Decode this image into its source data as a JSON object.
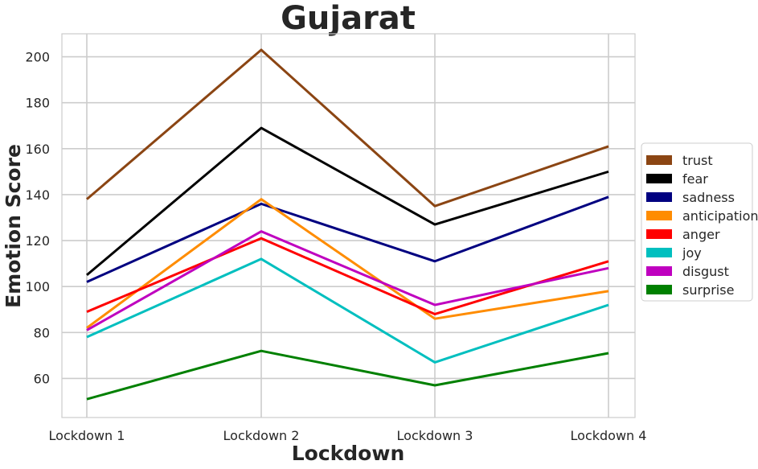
{
  "chart_data": {
    "type": "line",
    "title": "Gujarat",
    "xlabel": "Lockdown",
    "ylabel": "Emotion Score",
    "categories": [
      "Lockdown 1",
      "Lockdown 2",
      "Lockdown 3",
      "Lockdown 4"
    ],
    "ylim": [
      43,
      210
    ],
    "yticks": [
      60,
      80,
      100,
      120,
      140,
      160,
      180,
      200
    ],
    "grid": true,
    "legend_position": "right",
    "series": [
      {
        "name": "trust",
        "color": "#8B4513",
        "values": [
          138,
          203,
          135,
          161
        ]
      },
      {
        "name": "fear",
        "color": "#000000",
        "values": [
          105,
          169,
          127,
          150
        ]
      },
      {
        "name": "sadness",
        "color": "#000080",
        "values": [
          102,
          136,
          111,
          139
        ]
      },
      {
        "name": "anticipation",
        "color": "#FF8C00",
        "values": [
          82,
          138,
          86,
          98
        ]
      },
      {
        "name": "anger",
        "color": "#FF0000",
        "values": [
          89,
          121,
          88,
          111
        ]
      },
      {
        "name": "joy",
        "color": "#00BFBF",
        "values": [
          78,
          112,
          67,
          92
        ]
      },
      {
        "name": "disgust",
        "color": "#BF00BF",
        "values": [
          81,
          124,
          92,
          108
        ]
      },
      {
        "name": "surprise",
        "color": "#008000",
        "values": [
          51,
          72,
          57,
          71
        ]
      }
    ]
  }
}
